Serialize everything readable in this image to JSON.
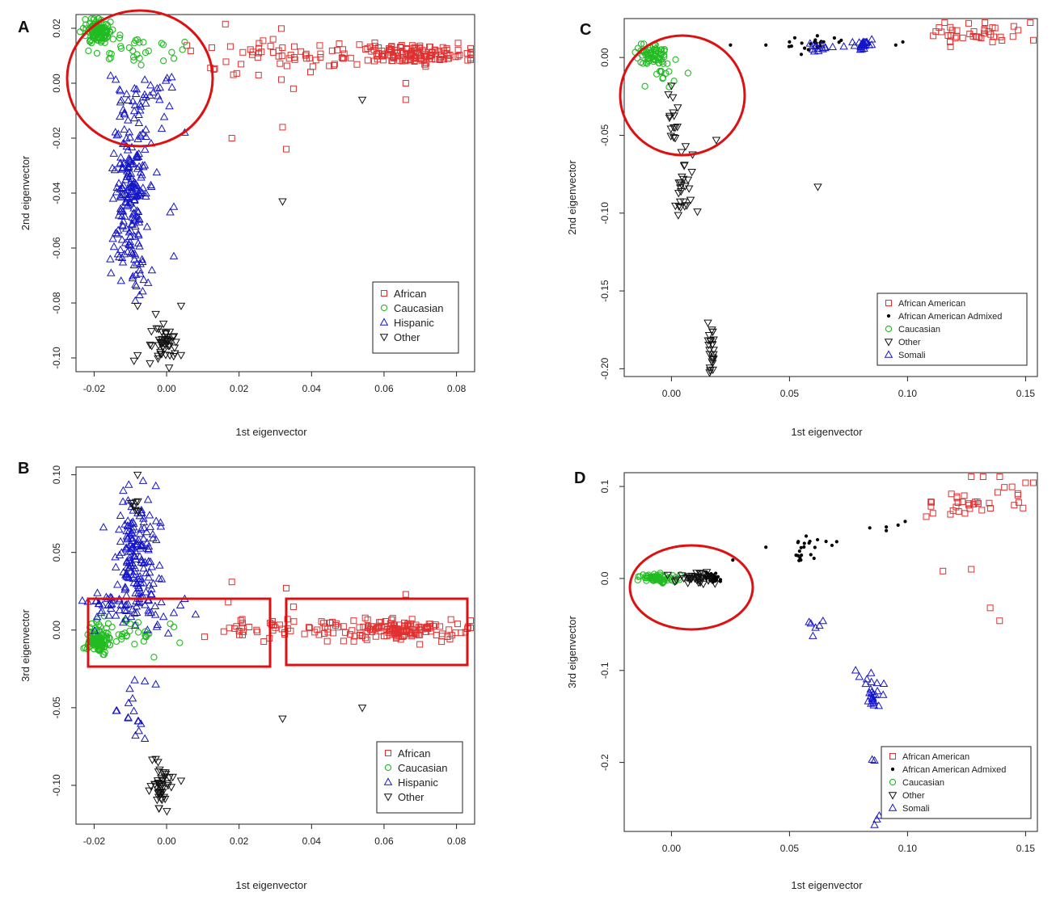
{
  "figure": {
    "panel_letters": [
      "A",
      "B",
      "C",
      "D"
    ]
  },
  "colors": {
    "African": "#e03030",
    "African American": "#e03030",
    "Caucasian": "#22bb22",
    "Hispanic": "#1515c8",
    "Somali": "#1515c8",
    "Other": "#111111",
    "African American Admixed": "#000000",
    "highlight": "#dd1111"
  },
  "chart_data": [
    {
      "panel": "A",
      "type": "scatter",
      "xlabel": "1st eigenvector",
      "ylabel": "2nd eigenvector",
      "xlim": [
        -0.025,
        0.085
      ],
      "ylim": [
        -0.105,
        0.025
      ],
      "xticks": [
        -0.02,
        0.0,
        0.02,
        0.04,
        0.06,
        0.08
      ],
      "xticklabels": [
        "-0.02",
        "0.00",
        "0.02",
        "0.04",
        "0.06",
        "0.08"
      ],
      "yticks": [
        -0.1,
        -0.08,
        -0.06,
        -0.04,
        -0.02,
        0.0,
        0.02
      ],
      "yticklabels": [
        "-0.10",
        "-0.08",
        "-0.06",
        "-0.04",
        "-0.02",
        "0.00",
        "0.02"
      ],
      "grid": false,
      "legend_position": "bottom-right",
      "legend": [
        "African",
        "Caucasian",
        "Hispanic",
        "Other"
      ],
      "series": [
        {
          "name": "African",
          "marker": "square",
          "clusters": [
            {
              "cx": 0.068,
              "cy": 0.0105,
              "sx": 0.008,
              "sy": 0.0017,
              "n": 140
            },
            {
              "cx": 0.04,
              "cy": 0.011,
              "sx": 0.014,
              "sy": 0.002,
              "n": 40
            },
            {
              "cx": 0.022,
              "cy": 0.01,
              "sx": 0.009,
              "sy": 0.005,
              "n": 25
            }
          ],
          "points": [
            [
              0.018,
              -0.02
            ],
            [
              0.032,
              -0.016
            ],
            [
              0.033,
              -0.024
            ],
            [
              0.066,
              -0.006
            ],
            [
              0.035,
              -0.002
            ],
            [
              0.066,
              0.0
            ],
            [
              0.013,
              0.005
            ]
          ]
        },
        {
          "name": "Caucasian",
          "marker": "circle",
          "clusters": [
            {
              "cx": -0.019,
              "cy": 0.019,
              "sx": 0.0016,
              "sy": 0.0022,
              "n": 110
            },
            {
              "cx": -0.011,
              "cy": 0.012,
              "sx": 0.006,
              "sy": 0.004,
              "n": 35
            }
          ],
          "points": [
            [
              0.002,
              0.009
            ],
            [
              0.005,
              0.015
            ]
          ]
        },
        {
          "name": "Hispanic",
          "marker": "triangle-up",
          "clusters": [
            {
              "cx": -0.01,
              "cy": -0.04,
              "sx": 0.0025,
              "sy": 0.014,
              "n": 190
            },
            {
              "cx": -0.008,
              "cy": -0.005,
              "sx": 0.005,
              "sy": 0.006,
              "n": 40
            },
            {
              "cx": -0.008,
              "cy": -0.07,
              "sx": 0.002,
              "sy": 0.006,
              "n": 15
            }
          ],
          "points": [
            [
              0.001,
              -0.047
            ],
            [
              0.002,
              -0.045
            ],
            [
              0.002,
              -0.063
            ],
            [
              0.005,
              -0.018
            ]
          ]
        },
        {
          "name": "Other",
          "marker": "triangle-down",
          "clusters": [
            {
              "cx": -0.0005,
              "cy": -0.095,
              "sx": 0.0018,
              "sy": 0.0035,
              "n": 45
            }
          ],
          "points": [
            [
              0.032,
              -0.043
            ],
            [
              0.054,
              -0.006
            ],
            [
              -0.009,
              -0.101
            ],
            [
              -0.008,
              -0.099
            ],
            [
              0.004,
              -0.081
            ],
            [
              -0.008,
              -0.081
            ],
            [
              -0.003,
              -0.084
            ]
          ]
        }
      ]
    },
    {
      "panel": "B",
      "type": "scatter",
      "xlabel": "1st eigenvector",
      "ylabel": "3rd eigenvector",
      "xlim": [
        -0.025,
        0.085
      ],
      "ylim": [
        -0.125,
        0.105
      ],
      "xticks": [
        -0.02,
        0.0,
        0.02,
        0.04,
        0.06,
        0.08
      ],
      "xticklabels": [
        "-0.02",
        "0.00",
        "0.02",
        "0.04",
        "0.06",
        "0.08"
      ],
      "yticks": [
        -0.1,
        -0.05,
        0.0,
        0.05,
        0.1
      ],
      "yticklabels": [
        "-0.10",
        "-0.05",
        "0.00",
        "0.05",
        "0.10"
      ],
      "grid": false,
      "legend_position": "bottom-right",
      "legend": [
        "African",
        "Caucasian",
        "Hispanic",
        "Other"
      ],
      "series": [
        {
          "name": "African",
          "marker": "square",
          "clusters": [
            {
              "cx": 0.066,
              "cy": 0.0,
              "sx": 0.008,
              "sy": 0.003,
              "n": 130
            },
            {
              "cx": 0.042,
              "cy": 0.0,
              "sx": 0.012,
              "sy": 0.004,
              "n": 45
            },
            {
              "cx": 0.022,
              "cy": 0.0,
              "sx": 0.005,
              "sy": 0.005,
              "n": 20
            }
          ],
          "points": [
            [
              0.018,
              0.031
            ],
            [
              0.033,
              0.027
            ],
            [
              0.066,
              0.023
            ],
            [
              0.017,
              0.018
            ],
            [
              0.035,
              0.015
            ]
          ]
        },
        {
          "name": "Caucasian",
          "marker": "circle",
          "clusters": [
            {
              "cx": -0.019,
              "cy": -0.007,
              "sx": 0.0016,
              "sy": 0.004,
              "n": 110
            },
            {
              "cx": -0.012,
              "cy": 0.0,
              "sx": 0.005,
              "sy": 0.006,
              "n": 35
            }
          ],
          "points": [
            [
              0.002,
              0.002
            ],
            [
              0.001,
              0.004
            ]
          ]
        },
        {
          "name": "Hispanic",
          "marker": "triangle-up",
          "clusters": [
            {
              "cx": -0.008,
              "cy": 0.048,
              "sx": 0.003,
              "sy": 0.017,
              "n": 150
            },
            {
              "cx": -0.01,
              "cy": 0.015,
              "sx": 0.006,
              "sy": 0.008,
              "n": 60
            },
            {
              "cx": -0.01,
              "cy": -0.055,
              "sx": 0.0025,
              "sy": 0.008,
              "n": 14
            }
          ],
          "points": [
            [
              0.005,
              0.02
            ],
            [
              0.008,
              0.01
            ],
            [
              0.002,
              0.011
            ],
            [
              -0.003,
              -0.035
            ],
            [
              -0.006,
              -0.033
            ],
            [
              -0.006,
              -0.07
            ]
          ]
        },
        {
          "name": "Other",
          "marker": "triangle-down",
          "clusters": [
            {
              "cx": -0.0015,
              "cy": -0.1,
              "sx": 0.0015,
              "sy": 0.008,
              "n": 45
            },
            {
              "cx": -0.008,
              "cy": 0.08,
              "sx": 0.0008,
              "sy": 0.004,
              "n": 8
            }
          ],
          "points": [
            [
              -0.008,
              0.1
            ],
            [
              0.032,
              -0.057
            ],
            [
              0.054,
              -0.05
            ],
            [
              0.004,
              -0.097
            ],
            [
              -0.003,
              -0.083
            ]
          ]
        }
      ]
    },
    {
      "panel": "C",
      "type": "scatter",
      "xlabel": "1st eigenvector",
      "ylabel": "2nd eigenvector",
      "xlim": [
        -0.02,
        0.155
      ],
      "ylim": [
        -0.205,
        0.025
      ],
      "xticks": [
        0.0,
        0.05,
        0.1,
        0.15
      ],
      "xticklabels": [
        "0.00",
        "0.05",
        "0.10",
        "0.15"
      ],
      "yticks": [
        -0.2,
        -0.15,
        -0.1,
        -0.05,
        0.0
      ],
      "yticklabels": [
        "-0.20",
        "-0.15",
        "-0.10",
        "-0.05",
        "0.00"
      ],
      "grid": false,
      "legend_position": "bottom-right",
      "legend": [
        "African American",
        "African American Admixed",
        "Caucasian",
        "Other",
        "Somali"
      ],
      "series": [
        {
          "name": "African American",
          "marker": "square",
          "clusters": [
            {
              "cx": 0.128,
              "cy": 0.016,
              "sx": 0.01,
              "sy": 0.004,
              "n": 35
            }
          ],
          "points": [
            [
              0.152,
              0.025
            ],
            [
              0.145,
              0.02
            ],
            [
              0.14,
              0.011
            ],
            [
              0.136,
              0.01
            ],
            [
              0.118,
              0.01
            ]
          ]
        },
        {
          "name": "African American Admixed",
          "marker": "dot",
          "clusters": [
            {
              "cx": 0.06,
              "cy": 0.009,
              "sx": 0.006,
              "sy": 0.002,
              "n": 20
            }
          ],
          "points": [
            [
              0.025,
              0.008
            ],
            [
              0.04,
              0.008
            ],
            [
              0.05,
              0.01
            ],
            [
              0.058,
              0.005
            ],
            [
              0.055,
              0.002
            ],
            [
              0.095,
              0.008
            ],
            [
              0.098,
              0.01
            ]
          ]
        },
        {
          "name": "Caucasian",
          "marker": "circle",
          "clusters": [
            {
              "cx": -0.008,
              "cy": 0.002,
              "sx": 0.003,
              "sy": 0.004,
              "n": 60
            },
            {
              "cx": -0.003,
              "cy": -0.012,
              "sx": 0.003,
              "sy": 0.005,
              "n": 12
            }
          ],
          "points": [
            [
              0.007,
              -0.01
            ],
            [
              -0.001,
              -0.019
            ]
          ]
        },
        {
          "name": "Other",
          "marker": "triangle-down",
          "clusters": [
            {
              "cx": 0.0,
              "cy": -0.04,
              "sx": 0.0015,
              "sy": 0.01,
              "n": 15
            },
            {
              "cx": 0.005,
              "cy": -0.085,
              "sx": 0.002,
              "sy": 0.01,
              "n": 25
            },
            {
              "cx": 0.017,
              "cy": -0.19,
              "sx": 0.001,
              "sy": 0.01,
              "n": 25
            }
          ],
          "points": [
            [
              0.062,
              -0.083
            ],
            [
              0.011,
              -0.099
            ],
            [
              0.019,
              -0.053
            ],
            [
              0.006,
              -0.057
            ]
          ]
        },
        {
          "name": "Somali",
          "marker": "triangle-up",
          "clusters": [
            {
              "cx": 0.082,
              "cy": 0.008,
              "sx": 0.003,
              "sy": 0.002,
              "n": 25
            },
            {
              "cx": 0.063,
              "cy": 0.006,
              "sx": 0.003,
              "sy": 0.002,
              "n": 12
            }
          ],
          "points": [
            [
              0.073,
              0.007
            ]
          ]
        }
      ]
    },
    {
      "panel": "D",
      "type": "scatter",
      "xlabel": "1st eigenvector",
      "ylabel": "3rd eigenvector",
      "xlim": [
        -0.02,
        0.155
      ],
      "ylim": [
        -0.275,
        0.115
      ],
      "xticks": [
        0.0,
        0.05,
        0.1,
        0.15
      ],
      "xticklabels": [
        "0.00",
        "0.05",
        "0.10",
        "0.15"
      ],
      "yticks": [
        -0.2,
        -0.1,
        0.0,
        0.1
      ],
      "yticklabels": [
        "-0.2",
        "-0.1",
        "0.0",
        "0.1"
      ],
      "grid": false,
      "legend_position": "bottom-right",
      "legend": [
        "African American",
        "African American Admixed",
        "Caucasian",
        "Other",
        "Somali"
      ],
      "series": [
        {
          "name": "African American",
          "marker": "square",
          "clusters": [
            {
              "cx": 0.122,
              "cy": 0.078,
              "sx": 0.007,
              "sy": 0.008,
              "n": 25
            },
            {
              "cx": 0.143,
              "cy": 0.095,
              "sx": 0.005,
              "sy": 0.012,
              "n": 10
            }
          ],
          "points": [
            [
              0.127,
              0.112
            ],
            [
              0.132,
              0.113
            ],
            [
              0.15,
              0.104
            ],
            [
              0.154,
              0.104
            ],
            [
              0.115,
              0.008
            ],
            [
              0.127,
              0.01
            ],
            [
              0.135,
              -0.032
            ],
            [
              0.139,
              -0.046
            ]
          ]
        },
        {
          "name": "African American Admixed",
          "marker": "dot",
          "clusters": [
            {
              "cx": 0.018,
              "cy": 0.0,
              "sx": 0.002,
              "sy": 0.002,
              "n": 30
            },
            {
              "cx": 0.058,
              "cy": 0.035,
              "sx": 0.004,
              "sy": 0.007,
              "n": 20
            }
          ],
          "points": [
            [
              0.026,
              0.02
            ],
            [
              0.04,
              0.034
            ],
            [
              0.07,
              0.04
            ],
            [
              0.068,
              0.036
            ],
            [
              0.084,
              0.055
            ],
            [
              0.091,
              0.056
            ],
            [
              0.096,
              0.058
            ],
            [
              0.099,
              0.062
            ],
            [
              0.091,
              0.052
            ]
          ]
        },
        {
          "name": "Caucasian",
          "marker": "circle",
          "clusters": [
            {
              "cx": -0.006,
              "cy": 0.0,
              "sx": 0.004,
              "sy": 0.0025,
              "n": 70
            }
          ],
          "points": []
        },
        {
          "name": "Other",
          "marker": "triangle-down",
          "clusters": [
            {
              "cx": 0.009,
              "cy": 0.0,
              "sx": 0.004,
              "sy": 0.003,
              "n": 35
            }
          ],
          "points": [
            [
              0.012,
              0.006
            ],
            [
              0.015,
              0.007
            ]
          ]
        },
        {
          "name": "Somali",
          "marker": "triangle-up",
          "clusters": [
            {
              "cx": 0.085,
              "cy": -0.125,
              "sx": 0.002,
              "sy": 0.008,
              "n": 25
            },
            {
              "cx": 0.062,
              "cy": -0.055,
              "sx": 0.002,
              "sy": 0.008,
              "n": 6
            }
          ],
          "points": [
            [
              0.085,
              -0.197
            ],
            [
              0.086,
              -0.198
            ],
            [
              0.087,
              -0.262
            ],
            [
              0.086,
              -0.268
            ],
            [
              0.088,
              -0.258
            ],
            [
              0.078,
              -0.1
            ]
          ]
        }
      ]
    }
  ]
}
